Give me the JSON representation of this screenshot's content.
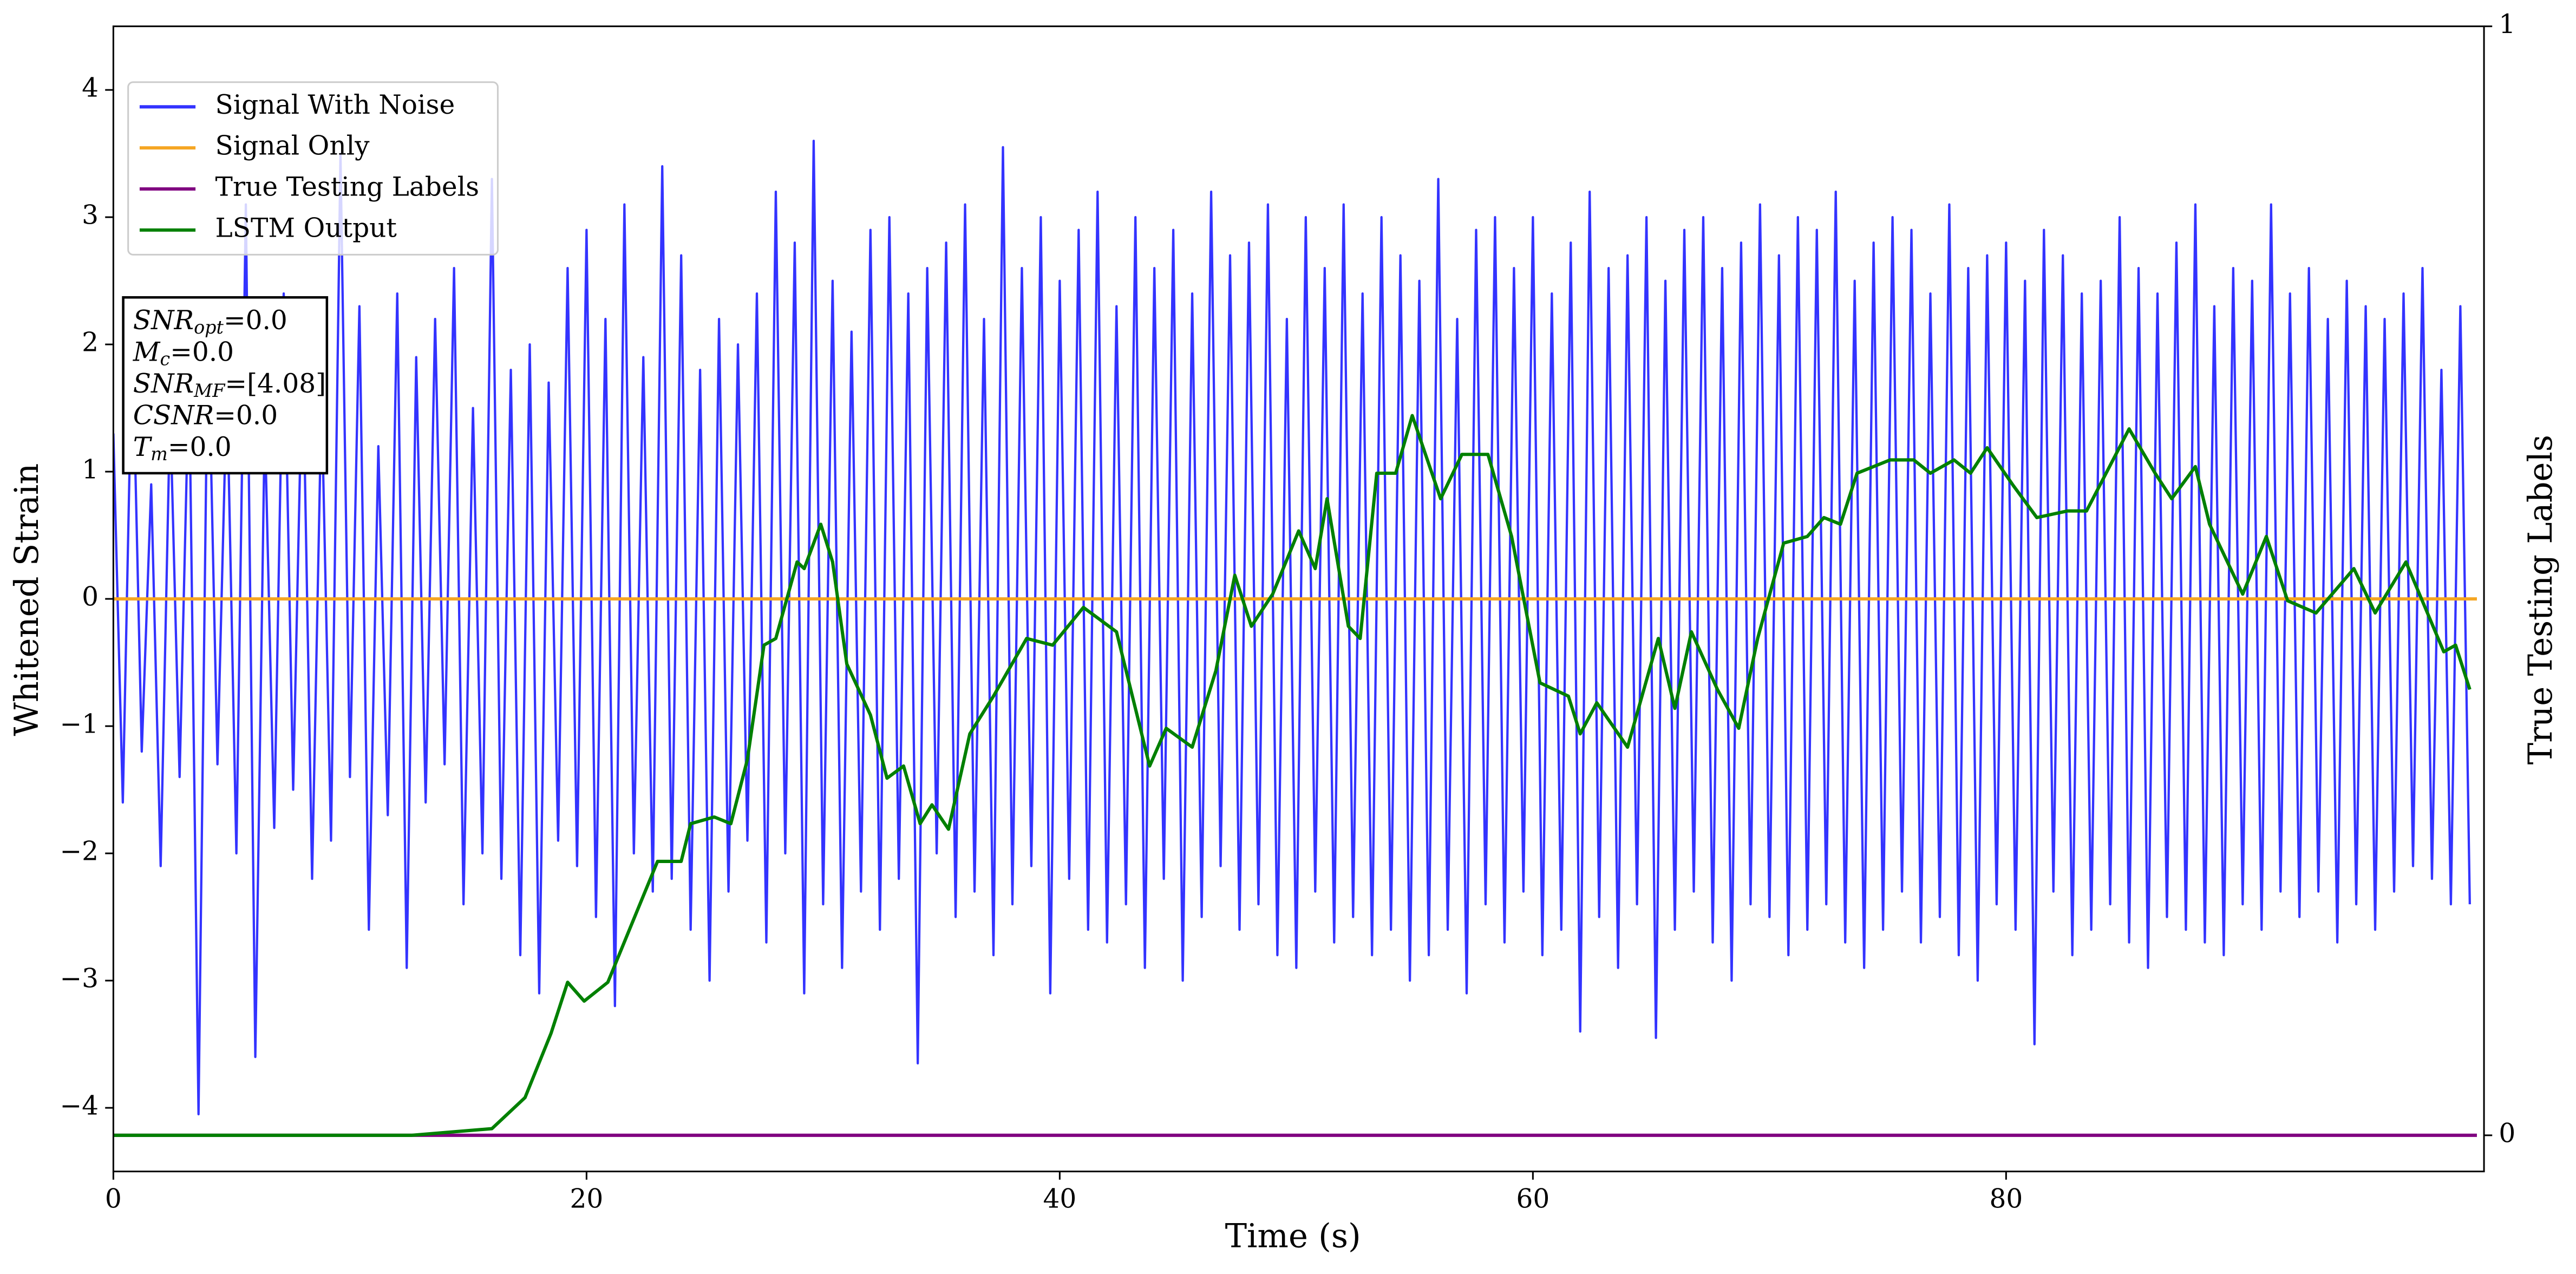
{
  "chart_data": {
    "type": "line",
    "xlabel": "Time (s)",
    "ylabel": "Whitened Strain",
    "y2label": "True Testing Labels",
    "xlim": [
      0,
      100.2
    ],
    "xticks": [
      0,
      20,
      40,
      60,
      80
    ],
    "ylim": [
      -4.5,
      4.5
    ],
    "yticks": [
      {
        "value": -4,
        "label": "−4"
      },
      {
        "value": -3,
        "label": "−3"
      },
      {
        "value": -2,
        "label": "−2"
      },
      {
        "value": -1,
        "label": "−1"
      },
      0,
      1,
      2,
      3,
      4
    ],
    "y2lim": [
      -0.0326,
      1
    ],
    "y2ticks": [
      0,
      1
    ],
    "legend": "upper left",
    "annotation": [
      {
        "base": "SNR",
        "sub": "opt",
        "rest": "=0.0"
      },
      {
        "base": "M",
        "sub": "c",
        "rest": "=0.0"
      },
      {
        "base": "SNR",
        "sub": "MF",
        "rest": "=[4.08]"
      },
      {
        "base": "CSNR",
        "sub": null,
        "rest": "=0.0"
      },
      {
        "base": "T",
        "sub": "m",
        "rest": "=0.0"
      }
    ],
    "x": [
      0,
      0.4,
      0.8,
      1.2,
      1.6,
      2,
      2.4,
      2.8,
      3.2,
      3.6,
      4,
      4.4,
      4.8,
      5.2,
      5.6,
      6,
      6.4,
      6.8,
      7.2,
      7.6,
      8,
      8.4,
      8.8,
      9.2,
      9.6,
      10,
      10.4,
      10.8,
      11.2,
      11.6,
      12,
      12.4,
      12.8,
      13.2,
      13.6,
      14,
      14.4,
      14.8,
      15.2,
      15.6,
      16,
      16.4,
      16.8,
      17.2,
      17.6,
      18,
      18.4,
      18.8,
      19.2,
      19.6,
      20,
      20.4,
      20.8,
      21.2,
      21.6,
      22,
      22.4,
      22.8,
      23.2,
      23.6,
      24,
      24.4,
      24.8,
      25.2,
      25.6,
      26,
      26.4,
      26.8,
      27.2,
      27.6,
      28,
      28.4,
      28.8,
      29.2,
      29.6,
      30,
      30.4,
      30.8,
      31.2,
      31.6,
      32,
      32.4,
      32.8,
      33.2,
      33.6,
      34,
      34.4,
      34.8,
      35.2,
      35.6,
      36,
      36.4,
      36.8,
      37.2,
      37.6,
      38,
      38.4,
      38.8,
      39.2,
      39.6,
      40,
      40.4,
      40.8,
      41.2,
      41.6,
      42,
      42.4,
      42.8,
      43.2,
      43.6,
      44,
      44.4,
      44.8,
      45.2,
      45.6,
      46,
      46.4,
      46.8,
      47.2,
      47.6,
      48,
      48.4,
      48.8,
      49.2,
      49.6,
      50,
      50.4,
      50.8,
      51.2,
      51.6,
      52,
      52.4,
      52.8,
      53.2,
      53.6,
      54,
      54.4,
      54.8,
      55.2,
      55.6,
      56,
      56.4,
      56.8,
      57.2,
      57.6,
      58,
      58.4,
      58.8,
      59.2,
      59.6,
      60,
      60.4,
      60.8,
      61.2,
      61.6,
      62,
      62.4,
      62.8,
      63.2,
      63.6,
      64,
      64.4,
      64.8,
      65.2,
      65.6,
      66,
      66.4,
      66.8,
      67.2,
      67.6,
      68,
      68.4,
      68.8,
      69.2,
      69.6,
      70,
      70.4,
      70.8,
      71.2,
      71.6,
      72,
      72.4,
      72.8,
      73.2,
      73.6,
      74,
      74.4,
      74.8,
      75.2,
      75.6,
      76,
      76.4,
      76.8,
      77.2,
      77.6,
      78,
      78.4,
      78.8,
      79.2,
      79.6,
      80,
      80.4,
      80.8,
      81.2,
      81.6,
      82,
      82.4,
      82.8,
      83.2,
      83.6,
      84,
      84.4,
      84.8,
      85.2,
      85.6,
      86,
      86.4,
      86.8,
      87.2,
      87.6,
      88,
      88.4,
      88.8,
      89.2,
      89.6,
      90,
      90.4,
      90.8,
      91.2,
      91.6,
      92,
      92.4,
      92.8,
      93.2,
      93.6,
      94,
      94.4,
      94.8,
      95.2,
      95.6,
      96,
      96.4,
      96.8,
      97.2,
      97.6,
      98,
      98.4,
      98.8,
      99.2,
      99.6
    ],
    "series": [
      {
        "name": "Signal With Noise",
        "color": "#3333ff",
        "axis": "y",
        "values": [
          1.3,
          -1.6,
          2.1,
          -1.2,
          0.9,
          -2.1,
          1.5,
          -1.4,
          1.8,
          -4.05,
          2.2,
          -1.3,
          1.7,
          -2.0,
          3.1,
          -3.6,
          1.4,
          -1.8,
          2.4,
          -1.5,
          2.0,
          -2.2,
          1.6,
          -1.9,
          3.5,
          -1.4,
          2.3,
          -2.6,
          1.2,
          -1.7,
          2.4,
          -2.9,
          1.9,
          -1.6,
          2.2,
          -1.3,
          2.6,
          -2.4,
          1.5,
          -2.0,
          3.3,
          -2.2,
          1.8,
          -2.8,
          2.0,
          -3.1,
          1.7,
          -1.9,
          2.6,
          -2.1,
          2.9,
          -2.5,
          2.2,
          -3.2,
          3.1,
          -2.0,
          1.9,
          -2.3,
          3.4,
          -2.2,
          2.7,
          -2.6,
          1.8,
          -3.0,
          2.2,
          -2.3,
          2.0,
          -1.9,
          2.4,
          -2.7,
          3.2,
          -2.0,
          2.8,
          -3.1,
          3.6,
          -2.4,
          2.5,
          -2.9,
          2.1,
          -2.3,
          2.9,
          -2.6,
          3.0,
          -2.2,
          2.4,
          -3.65,
          2.6,
          -2.0,
          2.8,
          -2.5,
          3.1,
          -2.3,
          2.2,
          -2.8,
          3.55,
          -2.4,
          2.6,
          -2.1,
          3.0,
          -3.1,
          2.5,
          -2.2,
          2.9,
          -2.6,
          3.2,
          -2.7,
          2.3,
          -2.4,
          3.0,
          -2.9,
          2.6,
          -2.2,
          2.9,
          -3.0,
          2.4,
          -2.5,
          3.2,
          -2.1,
          2.7,
          -2.6,
          2.8,
          -2.4,
          3.1,
          -2.8,
          2.2,
          -2.9,
          3.0,
          -2.3,
          2.6,
          -2.7,
          3.1,
          -2.5,
          2.4,
          -2.8,
          3.0,
          -2.6,
          2.7,
          -3.0,
          2.5,
          -2.8,
          3.3,
          -2.6,
          2.2,
          -3.1,
          2.9,
          -2.4,
          3.0,
          -2.7,
          2.6,
          -2.3,
          3.0,
          -2.8,
          2.4,
          -2.6,
          2.8,
          -3.4,
          3.2,
          -2.5,
          2.6,
          -2.9,
          2.7,
          -2.4,
          3.0,
          -3.45,
          2.5,
          -2.6,
          2.9,
          -2.3,
          3.0,
          -2.7,
          2.6,
          -3.0,
          2.8,
          -2.4,
          3.1,
          -2.5,
          2.7,
          -2.8,
          3.0,
          -2.6,
          2.9,
          -2.4,
          3.2,
          -2.7,
          2.5,
          -2.9,
          2.8,
          -2.6,
          3.0,
          -2.3,
          2.9,
          -2.7,
          2.4,
          -2.5,
          3.1,
          -2.8,
          2.6,
          -3.0,
          2.7,
          -2.4,
          2.8,
          -2.6,
          2.5,
          -3.5,
          2.9,
          -2.3,
          2.7,
          -2.8,
          2.4,
          -2.6,
          2.5,
          -2.4,
          3.0,
          -2.7,
          2.6,
          -2.9,
          2.4,
          -2.5,
          2.8,
          -2.6,
          3.1,
          -2.7,
          2.3,
          -2.8,
          2.6,
          -2.4,
          2.5,
          -2.6,
          3.1,
          -2.3,
          2.4,
          -2.5,
          2.6,
          -2.3,
          2.2,
          -2.7,
          2.5,
          -2.4,
          2.3,
          -2.6,
          2.2,
          -2.3,
          2.4,
          -2.1,
          2.6,
          -2.2,
          1.8,
          -2.4,
          2.3,
          -2.4
        ]
      },
      {
        "name": "Signal Only",
        "color": "#f5a623",
        "axis": "y",
        "x": [
          0,
          99.9
        ],
        "values": [
          0,
          0
        ]
      },
      {
        "name": "True Testing Labels",
        "color": "#800080",
        "axis": "y2",
        "x": [
          0,
          99.9
        ],
        "values": [
          0,
          0
        ]
      },
      {
        "name": "LSTM Output",
        "color": "#008000",
        "axis": "y2",
        "x": [
          0,
          12.6,
          16,
          17.4,
          18.5,
          19.2,
          19.9,
          20.9,
          21.9,
          23,
          24,
          24.4,
          25.4,
          26.1,
          26.8,
          27.5,
          28,
          28.9,
          29.2,
          29.9,
          30.4,
          31,
          32,
          32.7,
          33.4,
          34.1,
          34.6,
          35.3,
          36.2,
          37.2,
          38.6,
          39.7,
          41,
          42.4,
          43.8,
          44.5,
          45.6,
          46.6,
          47.4,
          48.1,
          49,
          50.1,
          50.8,
          51.3,
          52.2,
          52.7,
          53.4,
          54.2,
          54.9,
          56.1,
          57,
          58.1,
          59.1,
          60.3,
          61.5,
          62,
          62.7,
          64,
          65.3,
          66,
          66.7,
          67.8,
          68.7,
          69.5,
          70.6,
          71.6,
          72.3,
          73,
          73.7,
          75.1,
          76.1,
          76.8,
          77.8,
          78.5,
          79.2,
          80.3,
          81.3,
          82.6,
          83.4,
          85.2,
          86.3,
          87,
          88,
          88.6,
          90,
          91,
          91.9,
          93.1,
          94.7,
          95.6,
          96.9,
          98.5,
          99,
          99.6
        ],
        "values": [
          0,
          0,
          0.006,
          0.034,
          0.092,
          0.138,
          0.121,
          0.138,
          0.19,
          0.247,
          0.247,
          0.281,
          0.287,
          0.281,
          0.339,
          0.442,
          0.448,
          0.517,
          0.511,
          0.551,
          0.517,
          0.425,
          0.379,
          0.322,
          0.333,
          0.281,
          0.298,
          0.276,
          0.362,
          0.396,
          0.448,
          0.442,
          0.476,
          0.454,
          0.333,
          0.367,
          0.35,
          0.419,
          0.505,
          0.459,
          0.488,
          0.545,
          0.511,
          0.574,
          0.459,
          0.448,
          0.597,
          0.597,
          0.649,
          0.574,
          0.614,
          0.614,
          0.54,
          0.408,
          0.396,
          0.362,
          0.39,
          0.35,
          0.448,
          0.385,
          0.454,
          0.402,
          0.367,
          0.448,
          0.534,
          0.54,
          0.557,
          0.551,
          0.597,
          0.609,
          0.609,
          0.597,
          0.609,
          0.597,
          0.62,
          0.586,
          0.557,
          0.563,
          0.563,
          0.637,
          0.597,
          0.574,
          0.603,
          0.551,
          0.488,
          0.54,
          0.482,
          0.471,
          0.511,
          0.471,
          0.517,
          0.436,
          0.442,
          0.402
        ]
      }
    ]
  }
}
